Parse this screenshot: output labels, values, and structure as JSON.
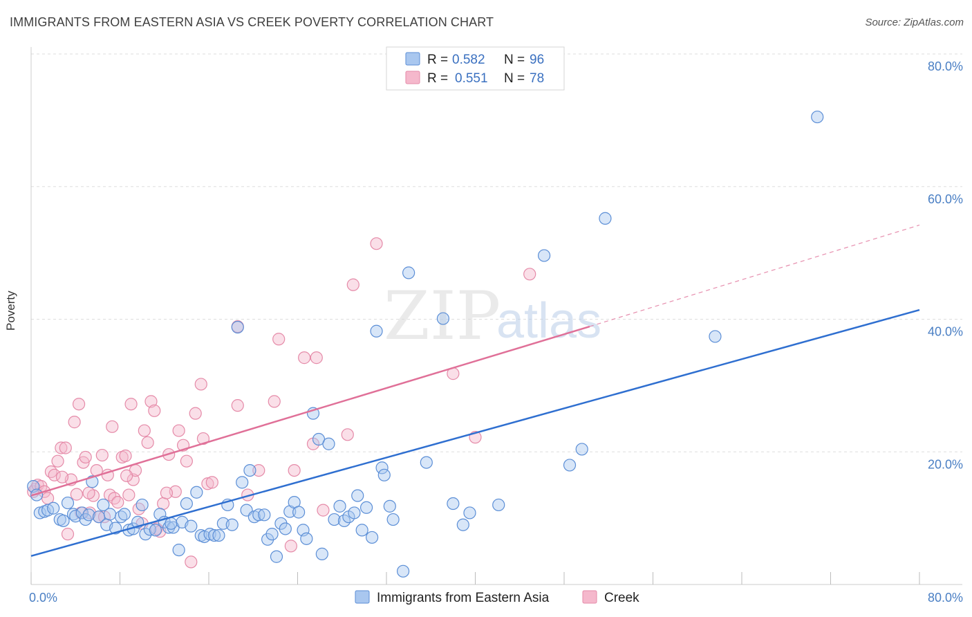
{
  "title": "IMMIGRANTS FROM EASTERN ASIA VS CREEK POVERTY CORRELATION CHART",
  "source": "Source: ZipAtlas.com",
  "watermark": {
    "zip": "ZIP",
    "atlas": "atlas"
  },
  "colors": {
    "blue_point_fill": "#a9c7ef",
    "blue_point_stroke": "#5b8ed6",
    "blue_line": "#2f6fd0",
    "pink_point_fill": "#f5b8cc",
    "pink_point_stroke": "#e58aa8",
    "pink_line": "#e07098",
    "tick_label": "#4a7fc4",
    "grid": "#dddddd"
  },
  "legend": {
    "rows": [
      {
        "r_label": "R =",
        "r_value": "0.582",
        "n_label": "N =",
        "n_value": "96"
      },
      {
        "r_label": "R =",
        "r_value": "0.551",
        "n_label": "N =",
        "n_value": "78"
      }
    ]
  },
  "chart_data": {
    "type": "scatter",
    "title": "IMMIGRANTS FROM EASTERN ASIA VS CREEK POVERTY CORRELATION CHART",
    "xlabel": "",
    "ylabel": "Poverty",
    "xlim": [
      0,
      80
    ],
    "ylim": [
      0,
      80
    ],
    "x_tick_labels": [
      "0.0%",
      "80.0%"
    ],
    "y_tick_labels": [
      "20.0%",
      "40.0%",
      "60.0%",
      "80.0%"
    ],
    "y_ticks": [
      20,
      40,
      60,
      80
    ],
    "grid": true,
    "legend_placement": "top-center",
    "series": [
      {
        "name": "Immigrants from Eastern Asia",
        "color": "#5b8ed6",
        "trend": {
          "x": [
            0,
            80
          ],
          "y": [
            4.3,
            41.4
          ]
        },
        "points": [
          [
            0.2,
            14.8
          ],
          [
            0.5,
            13.5
          ],
          [
            0.8,
            10.8
          ],
          [
            1.2,
            11
          ],
          [
            1.5,
            11.2
          ],
          [
            2,
            11.5
          ],
          [
            2.6,
            9.8
          ],
          [
            2.9,
            9.6
          ],
          [
            3.3,
            12.3
          ],
          [
            3.8,
            10.6
          ],
          [
            4,
            10.3
          ],
          [
            4.6,
            10.8
          ],
          [
            4.9,
            9.8
          ],
          [
            5.2,
            10.5
          ],
          [
            5.5,
            15.5
          ],
          [
            6.1,
            10.2
          ],
          [
            6.5,
            12
          ],
          [
            6.8,
            9
          ],
          [
            7.1,
            10.6
          ],
          [
            7.6,
            8.5
          ],
          [
            8.1,
            10.2
          ],
          [
            8.4,
            10.6
          ],
          [
            8.8,
            8.2
          ],
          [
            9.2,
            8.4
          ],
          [
            9.6,
            9.4
          ],
          [
            10,
            12
          ],
          [
            10.3,
            7.6
          ],
          [
            10.7,
            8.3
          ],
          [
            11.2,
            8.2
          ],
          [
            11.6,
            10.6
          ],
          [
            12,
            9.4
          ],
          [
            12.4,
            8.6
          ],
          [
            12.8,
            8.6
          ],
          [
            13.3,
            5.2
          ],
          [
            13.6,
            9.4
          ],
          [
            14,
            12.2
          ],
          [
            14.4,
            8.8
          ],
          [
            14.9,
            13.9
          ],
          [
            15.3,
            7.4
          ],
          [
            15.6,
            7.2
          ],
          [
            16.1,
            7.6
          ],
          [
            16.5,
            7.4
          ],
          [
            16.9,
            7.4
          ],
          [
            17.3,
            9.2
          ],
          [
            17.7,
            12
          ],
          [
            18.1,
            9
          ],
          [
            18.6,
            38.8
          ],
          [
            19,
            15.4
          ],
          [
            19.4,
            11.2
          ],
          [
            19.7,
            17.2
          ],
          [
            20.1,
            10.2
          ],
          [
            20.5,
            10.5
          ],
          [
            21,
            10.5
          ],
          [
            21.3,
            6.8
          ],
          [
            21.7,
            7.6
          ],
          [
            22.1,
            4.2
          ],
          [
            22.5,
            9.2
          ],
          [
            22.9,
            8.4
          ],
          [
            23.3,
            11
          ],
          [
            23.7,
            12.4
          ],
          [
            24.1,
            10.9
          ],
          [
            24.5,
            8.2
          ],
          [
            24.8,
            6.9
          ],
          [
            25.4,
            25.8
          ],
          [
            25.9,
            21.9
          ],
          [
            26.2,
            4.6
          ],
          [
            26.8,
            21.2
          ],
          [
            27.3,
            9.8
          ],
          [
            27.8,
            11.8
          ],
          [
            28.2,
            9.6
          ],
          [
            28.6,
            10.2
          ],
          [
            29.1,
            10.8
          ],
          [
            29.4,
            13.4
          ],
          [
            29.8,
            8.2
          ],
          [
            30.2,
            11.6
          ],
          [
            30.7,
            7.1
          ],
          [
            31.1,
            38.2
          ],
          [
            31.6,
            17.6
          ],
          [
            31.8,
            16.5
          ],
          [
            32.3,
            11.8
          ],
          [
            32.6,
            9.8
          ],
          [
            33.5,
            2
          ],
          [
            34,
            47
          ],
          [
            35.6,
            18.4
          ],
          [
            37.1,
            40.1
          ],
          [
            38,
            12.2
          ],
          [
            38.9,
            9
          ],
          [
            39.5,
            10.8
          ],
          [
            42.1,
            12
          ],
          [
            48.5,
            18
          ],
          [
            49.6,
            20.4
          ],
          [
            51.7,
            55.2
          ],
          [
            61.6,
            37.4
          ],
          [
            70.8,
            70.5
          ],
          [
            46.2,
            49.6
          ],
          [
            12.6,
            9.2
          ]
        ]
      },
      {
        "name": "Creek",
        "color": "#e58aa8",
        "trend": {
          "x": [
            0,
            50.3
          ],
          "y": [
            13.4,
            38.9
          ]
        },
        "trend_dashed": {
          "x": [
            50.3,
            80
          ],
          "y": [
            38.9,
            54.2
          ]
        },
        "points": [
          [
            0.2,
            14
          ],
          [
            0.4,
            14.4
          ],
          [
            0.6,
            15
          ],
          [
            0.9,
            14.8
          ],
          [
            1.2,
            14
          ],
          [
            1.5,
            13
          ],
          [
            1.8,
            17
          ],
          [
            2.1,
            16.5
          ],
          [
            2.4,
            18.6
          ],
          [
            2.7,
            20.6
          ],
          [
            3.1,
            20.6
          ],
          [
            3.3,
            7.6
          ],
          [
            3.6,
            15.8
          ],
          [
            3.9,
            24.5
          ],
          [
            4.1,
            13.6
          ],
          [
            4.3,
            27.2
          ],
          [
            4.5,
            10.8
          ],
          [
            4.7,
            18.4
          ],
          [
            4.9,
            19.2
          ],
          [
            5.3,
            10.8
          ],
          [
            5.6,
            13.4
          ],
          [
            5.9,
            17.2
          ],
          [
            6.1,
            10.2
          ],
          [
            6.4,
            19.5
          ],
          [
            6.6,
            10.2
          ],
          [
            6.9,
            16.5
          ],
          [
            7.1,
            13.5
          ],
          [
            7.3,
            23.8
          ],
          [
            7.5,
            13
          ],
          [
            7.8,
            12.4
          ],
          [
            8.2,
            19.2
          ],
          [
            8.5,
            19.4
          ],
          [
            8.8,
            13.5
          ],
          [
            9,
            27.2
          ],
          [
            9.2,
            15.8
          ],
          [
            9.4,
            17.2
          ],
          [
            9.7,
            11.4
          ],
          [
            10,
            9.2
          ],
          [
            10.2,
            23.2
          ],
          [
            10.5,
            21.4
          ],
          [
            10.8,
            27.6
          ],
          [
            11.1,
            26.2
          ],
          [
            11.3,
            8.4
          ],
          [
            11.6,
            8
          ],
          [
            11.9,
            12.2
          ],
          [
            12.4,
            19.6
          ],
          [
            13,
            14
          ],
          [
            13.3,
            23.2
          ],
          [
            13.7,
            21
          ],
          [
            14,
            18.6
          ],
          [
            14.4,
            3.4
          ],
          [
            14.8,
            25.8
          ],
          [
            15.3,
            30.2
          ],
          [
            15.5,
            22
          ],
          [
            15.9,
            15.2
          ],
          [
            16.3,
            15.4
          ],
          [
            18.6,
            38.9
          ],
          [
            18.6,
            27
          ],
          [
            19.5,
            13.5
          ],
          [
            20.5,
            17.2
          ],
          [
            21.9,
            27.6
          ],
          [
            22.3,
            37
          ],
          [
            23.4,
            5.8
          ],
          [
            23.7,
            17.2
          ],
          [
            24.6,
            34.2
          ],
          [
            25.4,
            21.2
          ],
          [
            25.7,
            34.2
          ],
          [
            26.3,
            11.2
          ],
          [
            28.5,
            22.6
          ],
          [
            29,
            45.2
          ],
          [
            31.1,
            51.4
          ],
          [
            38,
            31.8
          ],
          [
            40,
            22.2
          ],
          [
            44.9,
            46.8
          ],
          [
            5.2,
            13.8
          ],
          [
            12.2,
            13.8
          ],
          [
            8.6,
            16.4
          ],
          [
            2.8,
            16.2
          ]
        ]
      }
    ]
  }
}
